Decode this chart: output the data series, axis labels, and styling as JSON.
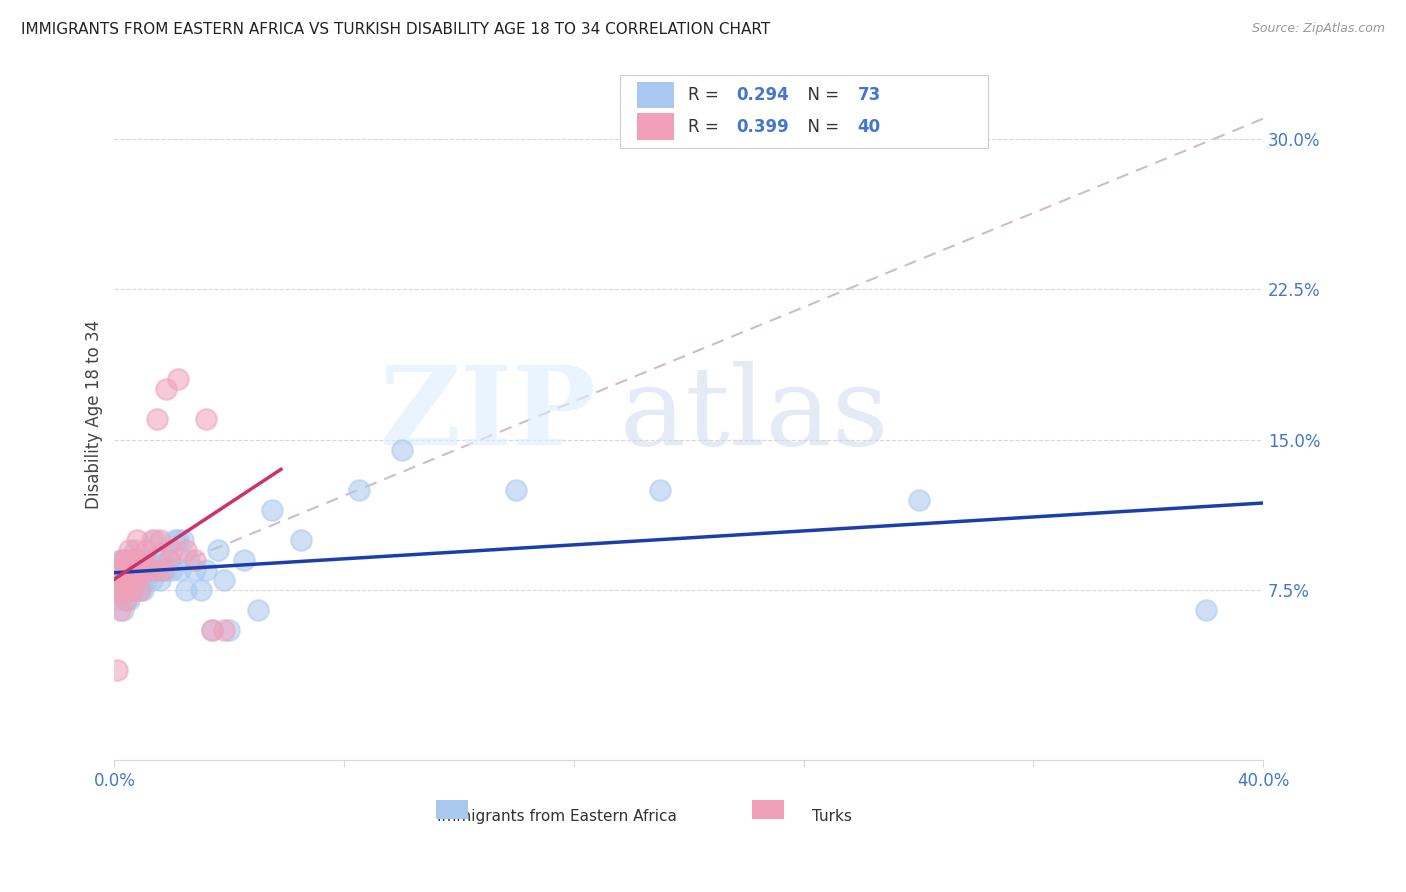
{
  "title": "IMMIGRANTS FROM EASTERN AFRICA VS TURKISH DISABILITY AGE 18 TO 34 CORRELATION CHART",
  "source": "Source: ZipAtlas.com",
  "ylabel_label": "Disability Age 18 to 34",
  "xlim": [
    0.0,
    0.4
  ],
  "ylim": [
    -0.01,
    0.335
  ],
  "ytick_vals": [
    0.075,
    0.15,
    0.225,
    0.3
  ],
  "ytick_labels": [
    "7.5%",
    "15.0%",
    "22.5%",
    "30.0%"
  ],
  "xtick_vals": [
    0.0,
    0.08,
    0.16,
    0.24,
    0.32,
    0.4
  ],
  "xtick_labels": [
    "0.0%",
    "",
    "",
    "",
    "",
    "40.0%"
  ],
  "r_blue": 0.294,
  "n_blue": 73,
  "r_pink": 0.399,
  "n_pink": 40,
  "blue_scatter_color": "#a8c8f0",
  "pink_scatter_color": "#f0a0b8",
  "blue_line_color": "#1a3faa",
  "pink_line_color": "#cc3366",
  "dashed_line_color": "#d0bcc8",
  "tick_color": "#4477cc",
  "grid_color": "#d8d8d8",
  "legend_label_blue": "Immigrants from Eastern Africa",
  "legend_label_pink": "Turks",
  "blue_scatter_x": [
    0.001,
    0.001,
    0.001,
    0.002,
    0.002,
    0.002,
    0.002,
    0.003,
    0.003,
    0.003,
    0.003,
    0.004,
    0.004,
    0.004,
    0.004,
    0.005,
    0.005,
    0.005,
    0.005,
    0.006,
    0.006,
    0.006,
    0.007,
    0.007,
    0.007,
    0.007,
    0.008,
    0.008,
    0.008,
    0.009,
    0.009,
    0.009,
    0.01,
    0.01,
    0.01,
    0.011,
    0.011,
    0.012,
    0.012,
    0.013,
    0.013,
    0.014,
    0.015,
    0.015,
    0.016,
    0.016,
    0.017,
    0.018,
    0.019,
    0.02,
    0.021,
    0.022,
    0.023,
    0.024,
    0.025,
    0.026,
    0.028,
    0.03,
    0.032,
    0.034,
    0.036,
    0.038,
    0.04,
    0.045,
    0.05,
    0.055,
    0.065,
    0.085,
    0.1,
    0.14,
    0.19,
    0.28,
    0.38
  ],
  "blue_scatter_y": [
    0.075,
    0.08,
    0.085,
    0.07,
    0.075,
    0.08,
    0.09,
    0.065,
    0.075,
    0.08,
    0.09,
    0.07,
    0.08,
    0.085,
    0.09,
    0.075,
    0.08,
    0.085,
    0.07,
    0.075,
    0.085,
    0.09,
    0.08,
    0.085,
    0.075,
    0.095,
    0.08,
    0.085,
    0.09,
    0.08,
    0.085,
    0.075,
    0.085,
    0.09,
    0.075,
    0.08,
    0.09,
    0.085,
    0.09,
    0.08,
    0.085,
    0.1,
    0.085,
    0.09,
    0.08,
    0.085,
    0.095,
    0.085,
    0.09,
    0.085,
    0.1,
    0.1,
    0.085,
    0.1,
    0.075,
    0.09,
    0.085,
    0.075,
    0.085,
    0.055,
    0.095,
    0.08,
    0.055,
    0.09,
    0.065,
    0.115,
    0.1,
    0.125,
    0.145,
    0.125,
    0.125,
    0.12,
    0.065
  ],
  "pink_scatter_x": [
    0.001,
    0.001,
    0.002,
    0.002,
    0.002,
    0.003,
    0.003,
    0.003,
    0.004,
    0.004,
    0.004,
    0.005,
    0.005,
    0.005,
    0.006,
    0.006,
    0.007,
    0.007,
    0.007,
    0.008,
    0.008,
    0.009,
    0.009,
    0.01,
    0.011,
    0.012,
    0.013,
    0.014,
    0.015,
    0.016,
    0.017,
    0.018,
    0.019,
    0.02,
    0.022,
    0.025,
    0.028,
    0.032,
    0.034,
    0.038
  ],
  "pink_scatter_y": [
    0.035,
    0.075,
    0.065,
    0.075,
    0.085,
    0.075,
    0.085,
    0.09,
    0.07,
    0.08,
    0.09,
    0.08,
    0.085,
    0.095,
    0.075,
    0.09,
    0.08,
    0.085,
    0.09,
    0.085,
    0.1,
    0.075,
    0.085,
    0.09,
    0.095,
    0.085,
    0.1,
    0.085,
    0.16,
    0.1,
    0.085,
    0.175,
    0.09,
    0.095,
    0.18,
    0.095,
    0.09,
    0.16,
    0.055,
    0.055
  ],
  "dashed_line_x": [
    0.0,
    0.4
  ],
  "dashed_line_y": [
    0.075,
    0.31
  ]
}
